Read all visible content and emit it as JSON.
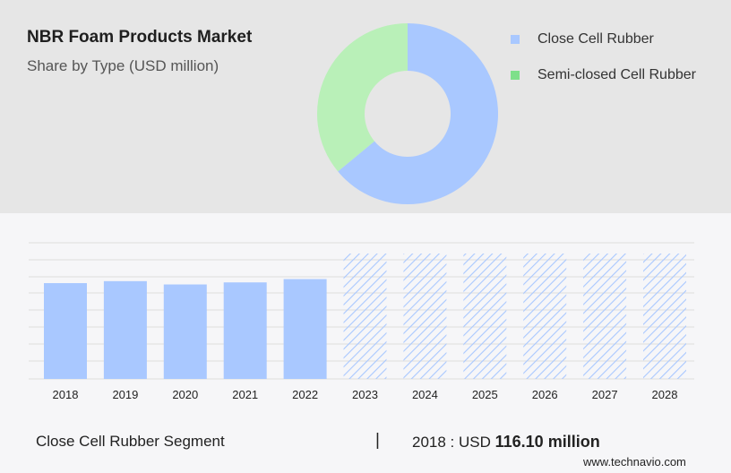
{
  "header": {
    "title": "NBR Foam Products Market",
    "subtitle": "Share by Type (USD million)"
  },
  "colors": {
    "close_cell": "#a9c8ff",
    "semi_closed": "#b9f0b8",
    "semi_closed_legend": "#7ee08a",
    "panel_bg": "#e6e6e6",
    "grid": "#dddddd",
    "forecast_hatch": "#a9c8ff"
  },
  "chart_data": [
    {
      "type": "pie",
      "variant": "donut",
      "slices": [
        {
          "name": "Close Cell Rubber",
          "value": 64
        },
        {
          "name": "Semi-closed Cell Rubber",
          "value": 36
        }
      ],
      "legend": [
        "Close Cell Rubber",
        "Semi-closed Cell Rubber"
      ],
      "legend_placement": "right"
    },
    {
      "type": "bar",
      "categories": [
        "2018",
        "2019",
        "2020",
        "2021",
        "2022",
        "2023",
        "2024",
        "2025",
        "2026",
        "2027",
        "2028"
      ],
      "values": [
        116.1,
        118.5,
        114.5,
        117.0,
        121.0,
        null,
        null,
        null,
        null,
        null,
        null
      ],
      "forecast_years": [
        "2023",
        "2024",
        "2025",
        "2026",
        "2027",
        "2028"
      ],
      "grid": true
    }
  ],
  "footer": {
    "segment_label": "Close Cell Rubber Segment",
    "separator": "|",
    "year_prefix": "2018 : USD",
    "value_text": "116.10 million",
    "source": "www.technavio.com"
  }
}
